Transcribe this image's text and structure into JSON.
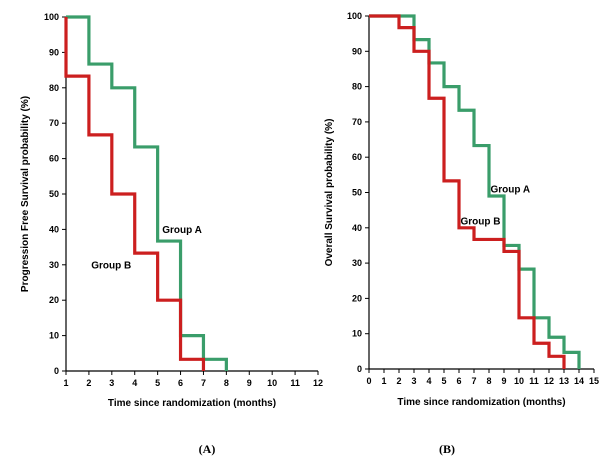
{
  "colors": {
    "group_a": "#3a9d6a",
    "group_b": "#cc1f1f",
    "axis": "#000000",
    "background": "#ffffff"
  },
  "chart_data": [
    {
      "type": "line",
      "step": "post",
      "panel_label": "(A)",
      "xlabel": "Time since randomization (months)",
      "ylabel": "Progression Free Survival probability (%)",
      "xlim": [
        1,
        12
      ],
      "ylim": [
        0,
        100
      ],
      "xticks": [
        1,
        2,
        3,
        4,
        5,
        6,
        7,
        8,
        9,
        10,
        11,
        12
      ],
      "yticks": [
        0,
        10,
        20,
        30,
        40,
        50,
        60,
        70,
        80,
        90,
        100
      ],
      "grid": false,
      "series": [
        {
          "name": "Group A",
          "color_key": "group_a",
          "x": [
            1,
            2,
            3,
            4,
            5,
            6,
            7,
            8
          ],
          "y": [
            100,
            86.7,
            80,
            63.3,
            36.7,
            10,
            3.3,
            0
          ]
        },
        {
          "name": "Group B",
          "color_key": "group_b",
          "x": [
            1,
            2,
            3,
            4,
            5,
            6,
            7
          ],
          "y": [
            83.3,
            66.7,
            50,
            33.3,
            20,
            3.3,
            0
          ]
        }
      ],
      "annotations": [
        {
          "text": "Group A",
          "series": "Group A",
          "x": 5.2,
          "y": 39
        },
        {
          "text": "Group B",
          "series": "Group B",
          "x": 2.1,
          "y": 29
        }
      ]
    },
    {
      "type": "line",
      "step": "post",
      "panel_label": "(B)",
      "xlabel": "Time since randomization (months)",
      "ylabel": "Overall Survival probability (%)",
      "xlim": [
        0,
        15
      ],
      "ylim": [
        0,
        100
      ],
      "xticks": [
        0,
        1,
        2,
        3,
        4,
        5,
        6,
        7,
        8,
        9,
        10,
        11,
        12,
        13,
        14,
        15
      ],
      "yticks": [
        0,
        10,
        20,
        30,
        40,
        50,
        60,
        70,
        80,
        90,
        100
      ],
      "grid": false,
      "series": [
        {
          "name": "Group A",
          "color_key": "group_a",
          "x": [
            0,
            3,
            4,
            5,
            6,
            7,
            8,
            9,
            10,
            11,
            12,
            13,
            14
          ],
          "y": [
            100,
            93.3,
            86.7,
            80,
            73.3,
            63.3,
            49,
            35,
            28.3,
            14.5,
            9,
            4.7,
            0
          ]
        },
        {
          "name": "Group B",
          "color_key": "group_b",
          "x": [
            0,
            2,
            3,
            4,
            5,
            6,
            7,
            9,
            10,
            11,
            12,
            13
          ],
          "y": [
            100,
            96.7,
            90,
            76.7,
            53.3,
            40,
            36.7,
            33.3,
            14.5,
            7.3,
            3.6,
            0
          ]
        }
      ],
      "annotations": [
        {
          "text": "Group A",
          "series": "Group A",
          "x": 8.1,
          "y": 50
        },
        {
          "text": "Group B",
          "series": "Group B",
          "x": 6.1,
          "y": 41
        }
      ]
    }
  ]
}
